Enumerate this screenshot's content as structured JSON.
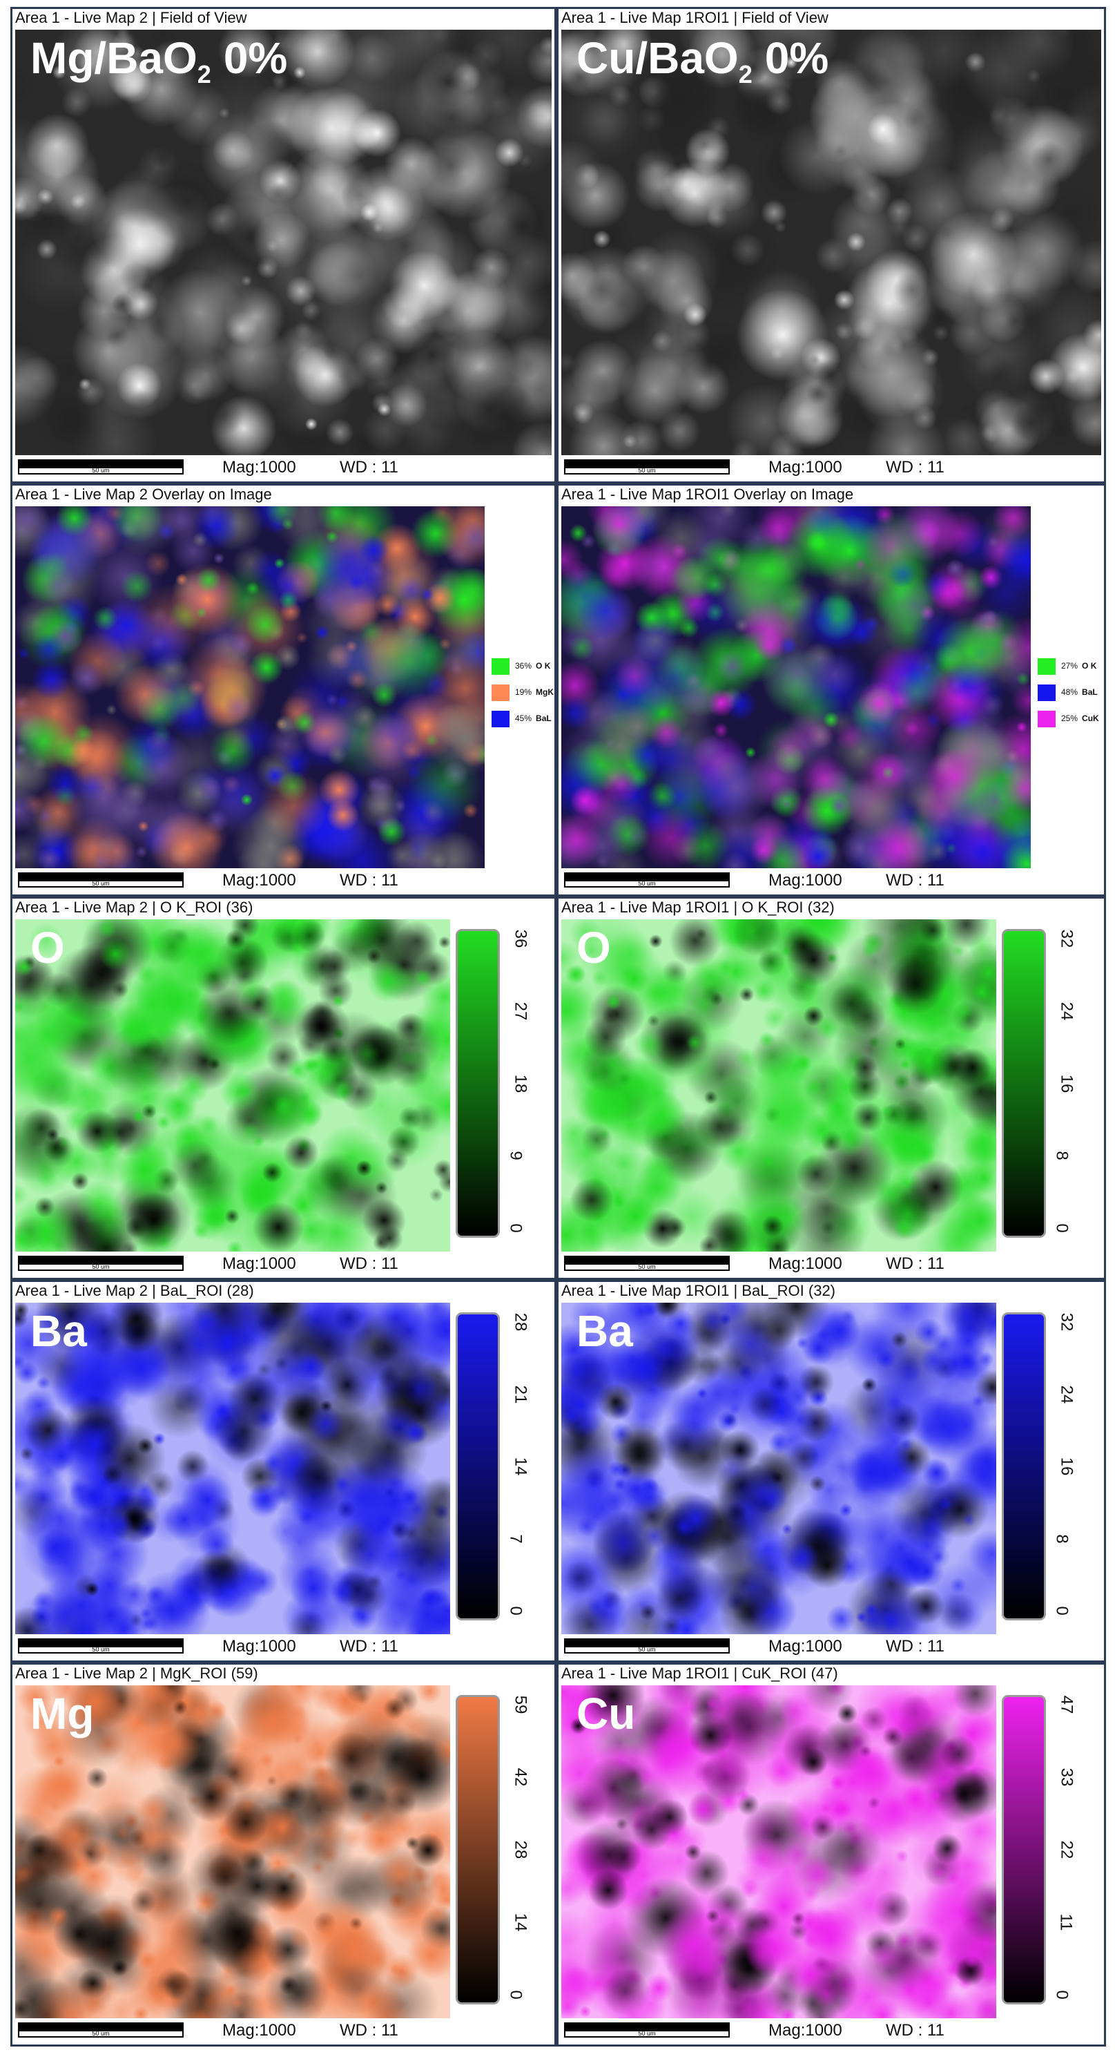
{
  "panels": [
    {
      "type": "sem",
      "title": "Area 1 - Live Map 2 | Field of View",
      "label": "Mg/BaO",
      "label_sub": "2",
      "label_tail": "0%",
      "scale_bar": "50 um",
      "mag": "Mag:1000",
      "wd": "WD : 11",
      "color": "#bdbdbd"
    },
    {
      "type": "sem",
      "title": "Area 1 - Live Map 1ROI1 | Field of View",
      "label": "Cu/BaO",
      "label_sub": "2",
      "label_tail": "0%",
      "scale_bar": "50 um",
      "mag": "Mag:1000",
      "wd": "WD : 11",
      "color": "#9a9a9a"
    },
    {
      "type": "overlay",
      "title": "Area 1 - Live Map 2 Overlay on Image",
      "scale_bar": "50 um",
      "mag": "Mag:1000",
      "wd": "WD : 11",
      "legend": [
        {
          "value": "36%",
          "name": "O K",
          "color": "#22ee22"
        },
        {
          "value": "19%",
          "name": "MgK",
          "color": "#ff8855"
        },
        {
          "value": "45%",
          "name": "BaL",
          "color": "#1515ee"
        }
      ]
    },
    {
      "type": "overlay",
      "title": "Area 1 - Live Map 1ROI1 Overlay on Image",
      "scale_bar": "50 um",
      "mag": "Mag:1000",
      "wd": "WD : 11",
      "legend": [
        {
          "value": "27%",
          "name": "O K",
          "color": "#22ee22"
        },
        {
          "value": "48%",
          "name": "BaL",
          "color": "#1515ee"
        },
        {
          "value": "25%",
          "name": "CuK",
          "color": "#ee22ee"
        }
      ]
    },
    {
      "type": "map",
      "title": "Area 1 - Live Map 2 | O K_ROI (36)",
      "label": "O",
      "scale_bar": "50 um",
      "mag": "Mag:1000",
      "wd": "WD : 11",
      "color": "#22dd22",
      "colorbar_ticks": [
        "36",
        "27",
        "18",
        "9",
        "0"
      ]
    },
    {
      "type": "map",
      "title": "Area 1 - Live Map 1ROI1 | O K_ROI (32)",
      "label": "O",
      "scale_bar": "50 um",
      "mag": "Mag:1000",
      "wd": "WD : 11",
      "color": "#22dd22",
      "colorbar_ticks": [
        "32",
        "24",
        "16",
        "8",
        "0"
      ]
    },
    {
      "type": "map",
      "title": "Area 1 - Live Map 2 | BaL_ROI (28)",
      "label": "Ba",
      "scale_bar": "50 um",
      "mag": "Mag:1000",
      "wd": "WD : 11",
      "color": "#1a1af0",
      "colorbar_ticks": [
        "28",
        "21",
        "14",
        "7",
        "0"
      ]
    },
    {
      "type": "map",
      "title": "Area 1 - Live Map 1ROI1 | BaL_ROI (32)",
      "label": "Ba",
      "scale_bar": "50 um",
      "mag": "Mag:1000",
      "wd": "WD : 11",
      "color": "#1a1af0",
      "colorbar_ticks": [
        "32",
        "24",
        "16",
        "8",
        "0"
      ]
    },
    {
      "type": "map",
      "title": "Area 1 - Live Map 2 | MgK_ROI (59)",
      "label": "Mg",
      "scale_bar": "50 um",
      "mag": "Mag:1000",
      "wd": "WD : 11",
      "color": "#f07a45",
      "colorbar_ticks": [
        "59",
        "42",
        "28",
        "14",
        "0"
      ]
    },
    {
      "type": "map",
      "title": "Area 1 - Live Map 1ROI1 | CuK_ROI (47)",
      "label": "Cu",
      "scale_bar": "50 um",
      "mag": "Mag:1000",
      "wd": "WD : 11",
      "color": "#ee22ee",
      "colorbar_ticks": [
        "47",
        "33",
        "22",
        "11",
        "0"
      ]
    }
  ]
}
